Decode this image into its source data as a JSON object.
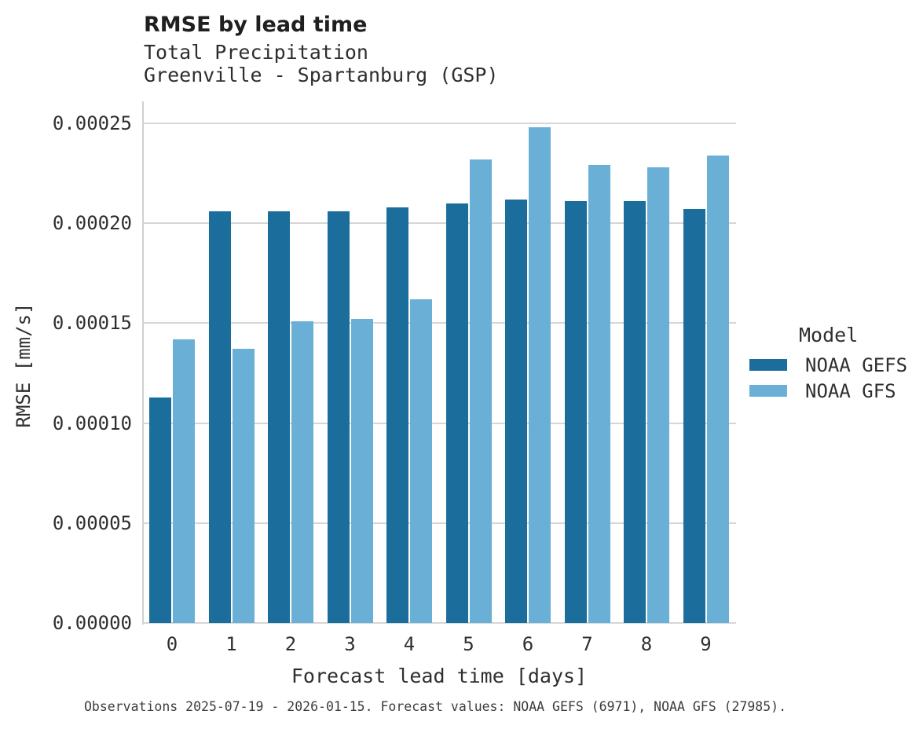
{
  "chart_data": {
    "type": "bar",
    "title": "RMSE by lead time",
    "subtitle": [
      "Total Precipitation",
      "Greenville - Spartanburg (GSP)"
    ],
    "xlabel": "Forecast lead time [days]",
    "ylabel": "RMSE [mm/s]",
    "legend_title": "Model",
    "legend_position": "right-center",
    "caption": "Observations 2025-07-19 - 2026-01-15. Forecast values: NOAA GEFS (6971), NOAA GFS (27985).",
    "categories": [
      "0",
      "1",
      "2",
      "3",
      "4",
      "5",
      "6",
      "7",
      "8",
      "9"
    ],
    "series": [
      {
        "name": "NOAA GEFS",
        "color": "#1b6e9c",
        "values": [
          0.000113,
          0.000206,
          0.000206,
          0.000206,
          0.000208,
          0.00021,
          0.000212,
          0.000211,
          0.000211,
          0.000207
        ]
      },
      {
        "name": "NOAA GFS",
        "color": "#6ab0d6",
        "values": [
          0.000142,
          0.000137,
          0.000151,
          0.000152,
          0.000162,
          0.000232,
          0.000248,
          0.000229,
          0.000228,
          0.000234
        ]
      }
    ],
    "ylim": [
      0,
      0.00025
    ],
    "yticks": [
      0,
      5e-05,
      0.0001,
      0.00015,
      0.0002,
      0.00025
    ],
    "ytick_labels": [
      "0.00000",
      "0.00005",
      "0.00010",
      "0.00015",
      "0.00020",
      "0.00025"
    ],
    "grid": true,
    "background": "#ffffff",
    "grid_color": "#d6d6d6"
  }
}
